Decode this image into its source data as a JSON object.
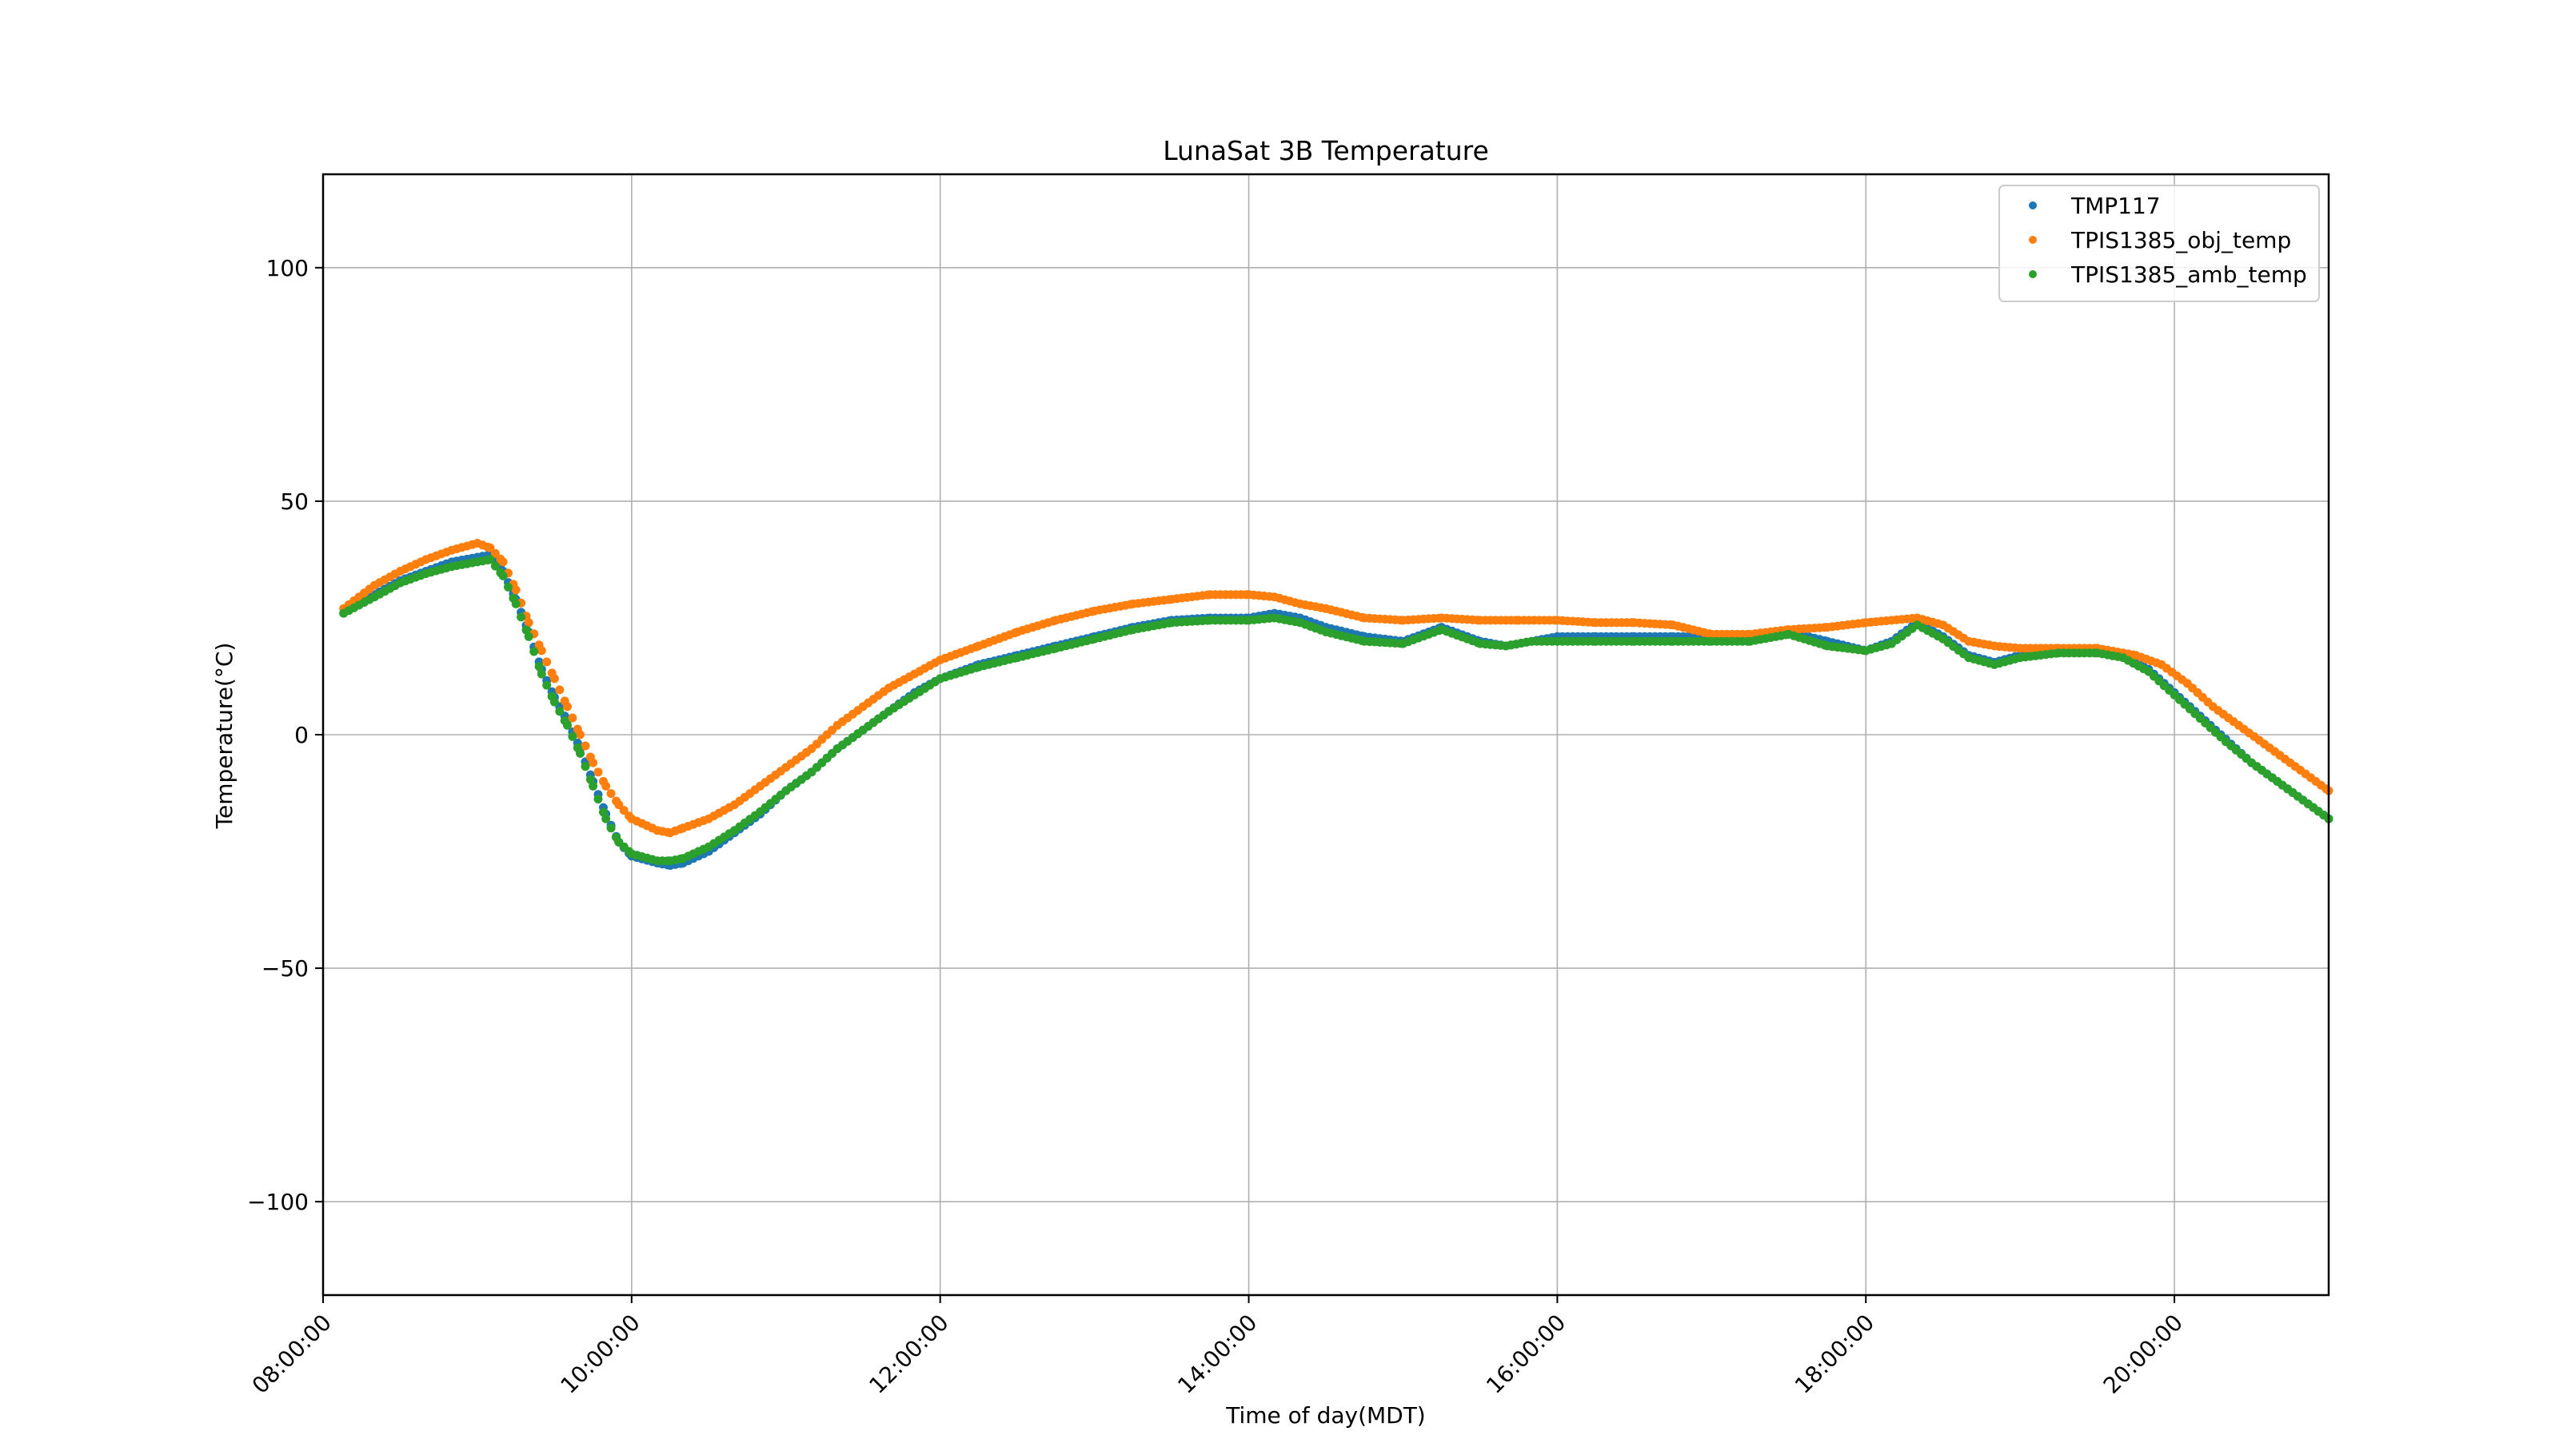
{
  "chart_data": {
    "type": "scatter",
    "title": "LunaSat 3B Temperature",
    "xlabel": "Time of day(MDT)",
    "ylabel": "Temperature(°C)",
    "xlim": [
      "08:00:00",
      "21:00:00"
    ],
    "ylim": [
      -120,
      120
    ],
    "x_ticks": [
      "08:00:00",
      "10:00:00",
      "12:00:00",
      "14:00:00",
      "16:00:00",
      "18:00:00",
      "20:00:00"
    ],
    "y_ticks": [
      -100,
      -50,
      0,
      50,
      100
    ],
    "y_tick_labels": [
      "−100",
      "−50",
      "0",
      "50",
      "100"
    ],
    "grid": true,
    "legend_position": "top-right",
    "series": [
      {
        "name": "TMP117",
        "color": "#1f77b4",
        "points": [
          [
            "08:08:00",
            26
          ],
          [
            "08:20:00",
            30
          ],
          [
            "08:30:00",
            33
          ],
          [
            "08:40:00",
            35
          ],
          [
            "08:50:00",
            37
          ],
          [
            "09:00:00",
            38
          ],
          [
            "09:05:00",
            38.5
          ],
          [
            "09:10:00",
            35
          ],
          [
            "09:15:00",
            29
          ],
          [
            "09:20:00",
            22
          ],
          [
            "09:25:00",
            14
          ],
          [
            "09:30:00",
            8
          ],
          [
            "09:35:00",
            3
          ],
          [
            "09:40:00",
            -3
          ],
          [
            "09:45:00",
            -10
          ],
          [
            "09:50:00",
            -17
          ],
          [
            "09:55:00",
            -23
          ],
          [
            "10:00:00",
            -26
          ],
          [
            "10:10:00",
            -27.5
          ],
          [
            "10:15:00",
            -28
          ],
          [
            "10:20:00",
            -27.5
          ],
          [
            "10:30:00",
            -25
          ],
          [
            "10:40:00",
            -21
          ],
          [
            "10:50:00",
            -17
          ],
          [
            "11:00:00",
            -12
          ],
          [
            "11:10:00",
            -8
          ],
          [
            "11:20:00",
            -3
          ],
          [
            "11:30:00",
            1
          ],
          [
            "11:40:00",
            5
          ],
          [
            "11:50:00",
            9
          ],
          [
            "12:00:00",
            12
          ],
          [
            "12:15:00",
            15
          ],
          [
            "12:30:00",
            17
          ],
          [
            "12:45:00",
            19
          ],
          [
            "13:00:00",
            21
          ],
          [
            "13:15:00",
            23
          ],
          [
            "13:30:00",
            24.5
          ],
          [
            "13:45:00",
            25
          ],
          [
            "14:00:00",
            25
          ],
          [
            "14:10:00",
            26
          ],
          [
            "14:20:00",
            25
          ],
          [
            "14:30:00",
            23
          ],
          [
            "14:45:00",
            21
          ],
          [
            "15:00:00",
            20
          ],
          [
            "15:15:00",
            23
          ],
          [
            "15:30:00",
            20
          ],
          [
            "15:40:00",
            19
          ],
          [
            "15:50:00",
            20
          ],
          [
            "16:00:00",
            21
          ],
          [
            "16:15:00",
            21
          ],
          [
            "16:30:00",
            21
          ],
          [
            "16:45:00",
            21
          ],
          [
            "17:00:00",
            21
          ],
          [
            "17:15:00",
            21
          ],
          [
            "17:30:00",
            22
          ],
          [
            "17:45:00",
            20
          ],
          [
            "18:00:00",
            18
          ],
          [
            "18:10:00",
            20
          ],
          [
            "18:20:00",
            24
          ],
          [
            "18:30:00",
            21
          ],
          [
            "18:40:00",
            17
          ],
          [
            "18:50:00",
            15.5
          ],
          [
            "19:00:00",
            17
          ],
          [
            "19:15:00",
            18
          ],
          [
            "19:30:00",
            18
          ],
          [
            "19:40:00",
            17
          ],
          [
            "19:50:00",
            14
          ],
          [
            "20:00:00",
            9
          ],
          [
            "20:10:00",
            4
          ],
          [
            "20:20:00",
            -1
          ],
          [
            "20:30:00",
            -6
          ],
          [
            "20:40:00",
            -10
          ],
          [
            "20:50:00",
            -14
          ],
          [
            "21:00:00",
            -18
          ]
        ]
      },
      {
        "name": "TPIS1385_obj_temp",
        "color": "#ff7f0e",
        "points": [
          [
            "08:08:00",
            27
          ],
          [
            "08:20:00",
            32
          ],
          [
            "08:30:00",
            35
          ],
          [
            "08:40:00",
            37.5
          ],
          [
            "08:50:00",
            39.5
          ],
          [
            "09:00:00",
            41
          ],
          [
            "09:05:00",
            40
          ],
          [
            "09:10:00",
            37
          ],
          [
            "09:15:00",
            31
          ],
          [
            "09:20:00",
            24
          ],
          [
            "09:25:00",
            18
          ],
          [
            "09:30:00",
            12
          ],
          [
            "09:35:00",
            6
          ],
          [
            "09:40:00",
            0
          ],
          [
            "09:45:00",
            -6
          ],
          [
            "09:50:00",
            -11
          ],
          [
            "09:55:00",
            -15
          ],
          [
            "10:00:00",
            -18
          ],
          [
            "10:10:00",
            -20.5
          ],
          [
            "10:15:00",
            -21
          ],
          [
            "10:20:00",
            -20
          ],
          [
            "10:30:00",
            -18
          ],
          [
            "10:40:00",
            -15
          ],
          [
            "10:50:00",
            -11
          ],
          [
            "11:00:00",
            -7
          ],
          [
            "11:10:00",
            -3
          ],
          [
            "11:20:00",
            2
          ],
          [
            "11:30:00",
            6
          ],
          [
            "11:40:00",
            10
          ],
          [
            "11:50:00",
            13
          ],
          [
            "12:00:00",
            16
          ],
          [
            "12:15:00",
            19
          ],
          [
            "12:30:00",
            22
          ],
          [
            "12:45:00",
            24.5
          ],
          [
            "13:00:00",
            26.5
          ],
          [
            "13:15:00",
            28
          ],
          [
            "13:30:00",
            29
          ],
          [
            "13:45:00",
            30
          ],
          [
            "14:00:00",
            30
          ],
          [
            "14:10:00",
            29.5
          ],
          [
            "14:20:00",
            28
          ],
          [
            "14:30:00",
            27
          ],
          [
            "14:45:00",
            25
          ],
          [
            "15:00:00",
            24.5
          ],
          [
            "15:15:00",
            25
          ],
          [
            "15:30:00",
            24.5
          ],
          [
            "15:45:00",
            24.5
          ],
          [
            "16:00:00",
            24.5
          ],
          [
            "16:15:00",
            24
          ],
          [
            "16:30:00",
            24
          ],
          [
            "16:45:00",
            23.5
          ],
          [
            "17:00:00",
            21.5
          ],
          [
            "17:15:00",
            21.5
          ],
          [
            "17:30:00",
            22.5
          ],
          [
            "17:45:00",
            23
          ],
          [
            "18:00:00",
            24
          ],
          [
            "18:10:00",
            24.5
          ],
          [
            "18:20:00",
            25
          ],
          [
            "18:30:00",
            23.5
          ],
          [
            "18:40:00",
            20
          ],
          [
            "18:50:00",
            19
          ],
          [
            "19:00:00",
            18.5
          ],
          [
            "19:15:00",
            18.5
          ],
          [
            "19:30:00",
            18.5
          ],
          [
            "19:45:00",
            17
          ],
          [
            "19:55:00",
            15
          ],
          [
            "20:05:00",
            11
          ],
          [
            "20:15:00",
            6
          ],
          [
            "20:25:00",
            2
          ],
          [
            "20:35:00",
            -2
          ],
          [
            "20:45:00",
            -6
          ],
          [
            "20:55:00",
            -10
          ],
          [
            "21:00:00",
            -12
          ]
        ]
      },
      {
        "name": "TPIS1385_amb_temp",
        "color": "#2ca02c",
        "points": [
          [
            "08:08:00",
            26
          ],
          [
            "08:20:00",
            29.5
          ],
          [
            "08:30:00",
            32.5
          ],
          [
            "08:40:00",
            34.5
          ],
          [
            "08:50:00",
            36
          ],
          [
            "09:00:00",
            37
          ],
          [
            "09:05:00",
            37.5
          ],
          [
            "09:10:00",
            34
          ],
          [
            "09:15:00",
            28
          ],
          [
            "09:20:00",
            21
          ],
          [
            "09:25:00",
            13
          ],
          [
            "09:30:00",
            7
          ],
          [
            "09:35:00",
            2
          ],
          [
            "09:40:00",
            -4
          ],
          [
            "09:45:00",
            -11
          ],
          [
            "09:50:00",
            -18
          ],
          [
            "09:55:00",
            -23
          ],
          [
            "10:00:00",
            -25.5
          ],
          [
            "10:10:00",
            -27
          ],
          [
            "10:15:00",
            -27
          ],
          [
            "10:20:00",
            -26.5
          ],
          [
            "10:30:00",
            -24
          ],
          [
            "10:40:00",
            -20.5
          ],
          [
            "10:50:00",
            -16.5
          ],
          [
            "11:00:00",
            -12
          ],
          [
            "11:10:00",
            -8
          ],
          [
            "11:20:00",
            -3
          ],
          [
            "11:30:00",
            1
          ],
          [
            "11:40:00",
            5
          ],
          [
            "11:50:00",
            8.5
          ],
          [
            "12:00:00",
            12
          ],
          [
            "12:15:00",
            14.5
          ],
          [
            "12:30:00",
            16.5
          ],
          [
            "12:45:00",
            18.5
          ],
          [
            "13:00:00",
            20.5
          ],
          [
            "13:15:00",
            22.5
          ],
          [
            "13:30:00",
            24
          ],
          [
            "13:45:00",
            24.5
          ],
          [
            "14:00:00",
            24.5
          ],
          [
            "14:10:00",
            25
          ],
          [
            "14:20:00",
            24
          ],
          [
            "14:30:00",
            22
          ],
          [
            "14:45:00",
            20
          ],
          [
            "15:00:00",
            19.5
          ],
          [
            "15:15:00",
            22.5
          ],
          [
            "15:30:00",
            19.5
          ],
          [
            "15:40:00",
            19
          ],
          [
            "15:50:00",
            20
          ],
          [
            "16:00:00",
            20
          ],
          [
            "16:15:00",
            20
          ],
          [
            "16:30:00",
            20
          ],
          [
            "16:45:00",
            20
          ],
          [
            "17:00:00",
            20
          ],
          [
            "17:15:00",
            20
          ],
          [
            "17:30:00",
            21.5
          ],
          [
            "17:45:00",
            19
          ],
          [
            "18:00:00",
            18
          ],
          [
            "18:10:00",
            19.5
          ],
          [
            "18:20:00",
            23.5
          ],
          [
            "18:30:00",
            20.5
          ],
          [
            "18:40:00",
            16.5
          ],
          [
            "18:50:00",
            15
          ],
          [
            "19:00:00",
            16.5
          ],
          [
            "19:15:00",
            17.5
          ],
          [
            "19:30:00",
            17.5
          ],
          [
            "19:40:00",
            16.5
          ],
          [
            "19:50:00",
            13.5
          ],
          [
            "20:00:00",
            8.5
          ],
          [
            "20:10:00",
            3.5
          ],
          [
            "20:20:00",
            -1.5
          ],
          [
            "20:30:00",
            -6
          ],
          [
            "20:40:00",
            -10
          ],
          [
            "20:50:00",
            -14
          ],
          [
            "21:00:00",
            -18
          ]
        ]
      }
    ]
  }
}
